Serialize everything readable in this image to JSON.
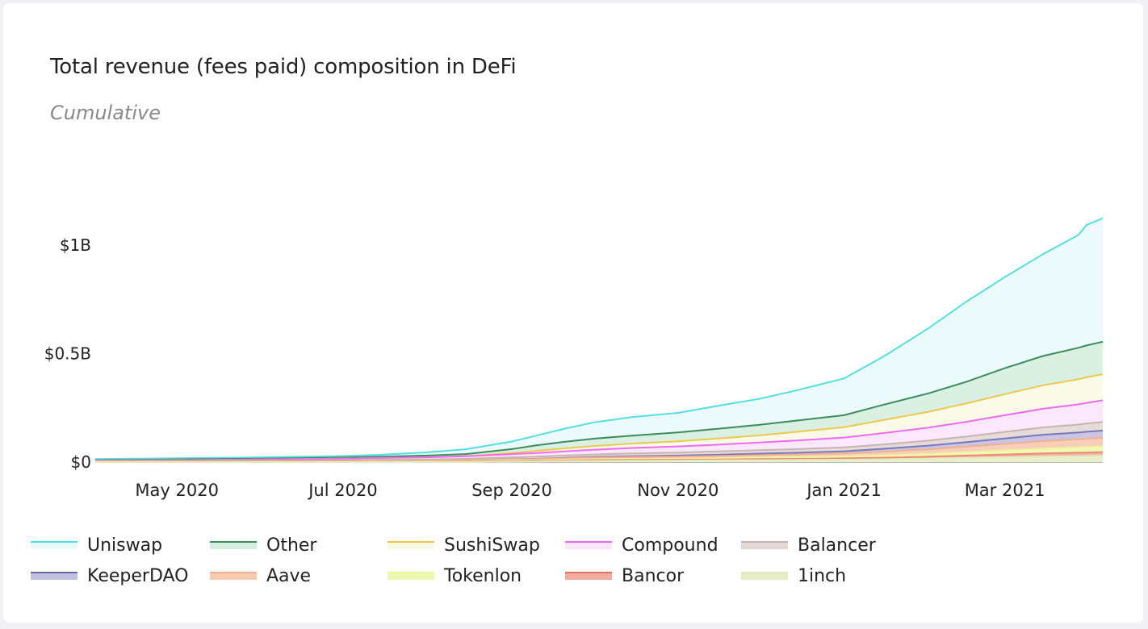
{
  "title": "Total revenue (fees paid) composition in DeFi",
  "subtitle": "Cumulative",
  "chart_data": {
    "type": "area",
    "stacked": true,
    "x": [
      "2020-04-01",
      "2020-05-01",
      "2020-06-01",
      "2020-07-01",
      "2020-07-15",
      "2020-08-01",
      "2020-08-15",
      "2020-09-01",
      "2020-09-10",
      "2020-09-20",
      "2020-10-01",
      "2020-10-15",
      "2020-11-01",
      "2020-11-15",
      "2020-12-01",
      "2020-12-15",
      "2021-01-01",
      "2021-01-15",
      "2021-02-01",
      "2021-02-15",
      "2021-03-01",
      "2021-03-15",
      "2021-03-28",
      "2021-03-31",
      "2021-04-06"
    ],
    "series": [
      {
        "name": "1inch",
        "color": "#e4ecc0",
        "values": [
          0,
          0,
          0,
          0,
          0,
          0,
          0,
          0.002,
          0.003,
          0.004,
          0.005,
          0.006,
          0.007,
          0.008,
          0.009,
          0.01,
          0.011,
          0.013,
          0.016,
          0.019,
          0.022,
          0.025,
          0.027,
          0.028,
          0.029
        ]
      },
      {
        "name": "Bancor",
        "color": "#ed8a70",
        "values": [
          0.002,
          0.002,
          0.002,
          0.002,
          0.002,
          0.002,
          0.003,
          0.003,
          0.003,
          0.003,
          0.004,
          0.004,
          0.004,
          0.004,
          0.005,
          0.005,
          0.006,
          0.007,
          0.009,
          0.011,
          0.013,
          0.015,
          0.016,
          0.016,
          0.017
        ]
      },
      {
        "name": "Tokenlon",
        "color": "#eef5a0",
        "values": [
          0.001,
          0.001,
          0.001,
          0.001,
          0.002,
          0.002,
          0.002,
          0.003,
          0.003,
          0.004,
          0.004,
          0.005,
          0.005,
          0.006,
          0.007,
          0.008,
          0.009,
          0.011,
          0.013,
          0.016,
          0.019,
          0.022,
          0.024,
          0.025,
          0.026
        ]
      },
      {
        "name": "Aave",
        "color": "#f3b08f",
        "values": [
          0.001,
          0.001,
          0.001,
          0.002,
          0.002,
          0.002,
          0.003,
          0.004,
          0.005,
          0.006,
          0.007,
          0.008,
          0.009,
          0.01,
          0.011,
          0.012,
          0.014,
          0.017,
          0.021,
          0.025,
          0.03,
          0.035,
          0.038,
          0.039,
          0.04
        ]
      },
      {
        "name": "KeeperDAO",
        "color": "#7a78b8",
        "values": [
          0,
          0,
          0,
          0,
          0,
          0,
          0,
          0.001,
          0.001,
          0.002,
          0.003,
          0.004,
          0.005,
          0.006,
          0.007,
          0.008,
          0.01,
          0.013,
          0.017,
          0.021,
          0.025,
          0.029,
          0.031,
          0.032,
          0.033
        ]
      },
      {
        "name": "Balancer",
        "color": "#c9b4b0",
        "values": [
          0.001,
          0.002,
          0.003,
          0.004,
          0.005,
          0.006,
          0.007,
          0.009,
          0.01,
          0.011,
          0.012,
          0.013,
          0.014,
          0.015,
          0.016,
          0.017,
          0.018,
          0.02,
          0.023,
          0.026,
          0.03,
          0.034,
          0.037,
          0.038,
          0.04
        ]
      },
      {
        "name": "Compound",
        "color": "#ec6cf0",
        "values": [
          0.002,
          0.003,
          0.005,
          0.007,
          0.008,
          0.01,
          0.012,
          0.015,
          0.017,
          0.019,
          0.022,
          0.025,
          0.028,
          0.031,
          0.035,
          0.04,
          0.045,
          0.052,
          0.06,
          0.068,
          0.077,
          0.086,
          0.093,
          0.095,
          0.1
        ]
      },
      {
        "name": "SushiSwap",
        "color": "#ecc94e",
        "values": [
          0,
          0,
          0,
          0,
          0,
          0,
          0,
          0.005,
          0.01,
          0.014,
          0.017,
          0.02,
          0.024,
          0.028,
          0.033,
          0.04,
          0.048,
          0.06,
          0.073,
          0.085,
          0.097,
          0.108,
          0.116,
          0.118,
          0.12
        ]
      },
      {
        "name": "Other",
        "color": "#3c8c5c",
        "values": [
          0.002,
          0.003,
          0.004,
          0.005,
          0.006,
          0.008,
          0.01,
          0.018,
          0.025,
          0.03,
          0.034,
          0.037,
          0.041,
          0.045,
          0.049,
          0.052,
          0.055,
          0.07,
          0.085,
          0.1,
          0.12,
          0.135,
          0.145,
          0.147,
          0.15
        ]
      },
      {
        "name": "Uniswap",
        "color": "#52dfe2",
        "values": [
          0.005,
          0.006,
          0.006,
          0.007,
          0.009,
          0.015,
          0.022,
          0.035,
          0.045,
          0.06,
          0.075,
          0.085,
          0.09,
          0.105,
          0.12,
          0.14,
          0.17,
          0.22,
          0.3,
          0.37,
          0.42,
          0.47,
          0.52,
          0.555,
          0.57
        ]
      }
    ],
    "yticks": [
      {
        "v": 0,
        "label": "$0"
      },
      {
        "v": 0.5,
        "label": "$0.5B"
      },
      {
        "v": 1,
        "label": "$1B"
      }
    ],
    "xticks": [
      {
        "v": "2020-05-01",
        "label": "May 2020"
      },
      {
        "v": "2020-07-01",
        "label": "Jul 2020"
      },
      {
        "v": "2020-09-01",
        "label": "Sep 2020"
      },
      {
        "v": "2020-11-01",
        "label": "Nov 2020"
      },
      {
        "v": "2021-01-01",
        "label": "Jan 2021"
      },
      {
        "v": "2021-03-01",
        "label": "Mar 2021"
      }
    ],
    "xlim": [
      "2020-04-01",
      "2021-04-06"
    ],
    "ylim": [
      0,
      1.22
    ],
    "unit": "billion USD",
    "grid": false
  },
  "legend": [
    {
      "name": "Uniswap",
      "color": "#52dfe2",
      "fill": "#eafafb"
    },
    {
      "name": "Other",
      "color": "#3c8c5c",
      "fill": "#d5eee0"
    },
    {
      "name": "SushiSwap",
      "color": "#ecc94e",
      "fill": "#fbf8e4"
    },
    {
      "name": "Compound",
      "color": "#ec6cf0",
      "fill": "#fbe6fc"
    },
    {
      "name": "Balancer",
      "color": "#c9b4b0",
      "fill": "#e2d8d6"
    },
    {
      "name": "KeeperDAO",
      "color": "#6a68a8",
      "fill": "#c2c0e0"
    },
    {
      "name": "Aave",
      "color": "#f3b08f",
      "fill": "#f7c9b0"
    },
    {
      "name": "Tokenlon",
      "color": "#eef5a0",
      "fill": "#eef8b0"
    },
    {
      "name": "Bancor",
      "color": "#e8705a",
      "fill": "#f2ad9e"
    },
    {
      "name": "1inch",
      "color": "#dfe8b8",
      "fill": "#e6edc4"
    }
  ]
}
